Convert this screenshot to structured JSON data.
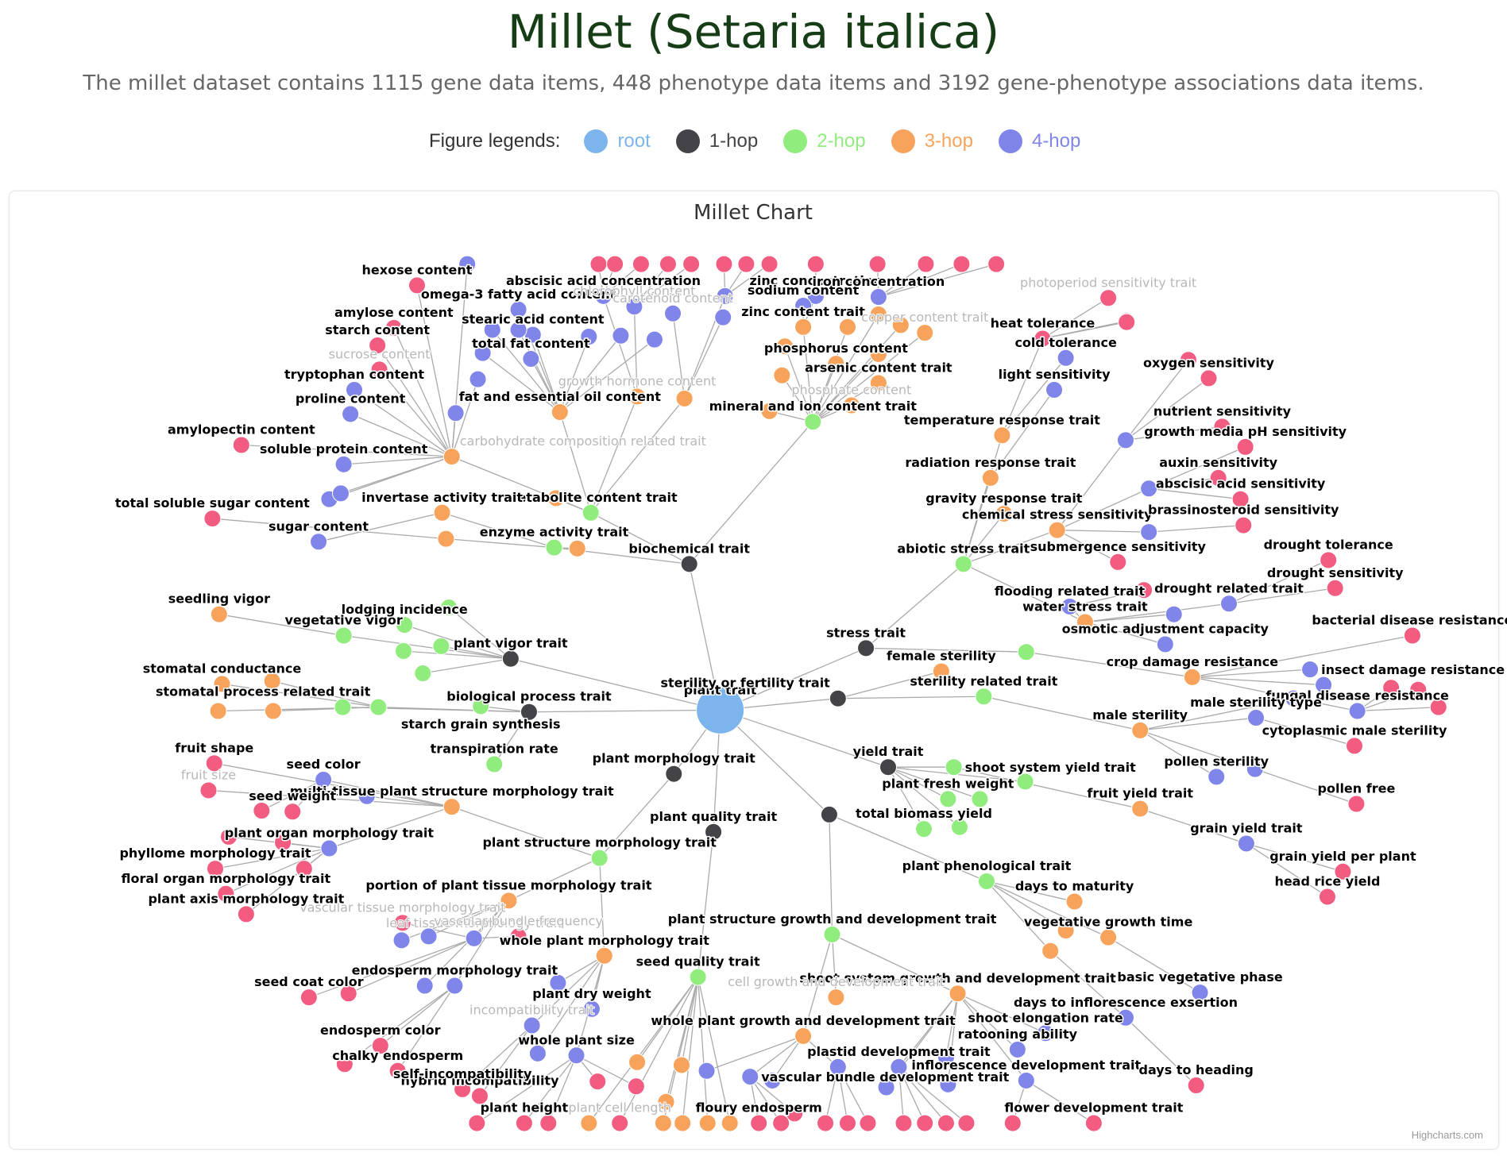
{
  "header": {
    "title": "Millet (Setaria italica)",
    "subtitle": "The millet dataset contains 1115 gene data items, 448 phenotype data items and 3192 gene-phenotype associations data items."
  },
  "legend": {
    "caption": "Figure legends:",
    "items": [
      {
        "label": "root",
        "color": "#7cb5ec",
        "text_color": "#7cb5ec"
      },
      {
        "label": "1-hop",
        "color": "#434348",
        "text_color": "#434348"
      },
      {
        "label": "2-hop",
        "color": "#90ed7d",
        "text_color": "#90ed7d"
      },
      {
        "label": "3-hop",
        "color": "#f7a35c",
        "text_color": "#f7a35c"
      },
      {
        "label": "4-hop",
        "color": "#8085e9",
        "text_color": "#8085e9"
      }
    ],
    "leaf_color": "#f15c80"
  },
  "chart": {
    "title": "Millet Chart",
    "credits": "Highcharts.com"
  },
  "chart_data": {
    "type": "network-graph",
    "root": "plant trait",
    "labeled_nodes": [
      {
        "label": "plant trait",
        "level": 0
      },
      {
        "label": "biochemical trait",
        "level": 1
      },
      {
        "label": "stress trait",
        "level": 1
      },
      {
        "label": "sterility or fertility trait",
        "level": 1
      },
      {
        "label": "yield trait",
        "level": 1
      },
      {
        "label": "plant quality trait",
        "level": 1
      },
      {
        "label": "plant morphology trait",
        "level": 1
      },
      {
        "label": "biological process trait",
        "level": 1
      },
      {
        "label": "plant vigor trait",
        "level": 1
      },
      {
        "label": "mineral and ion content trait",
        "level": 2
      },
      {
        "label": "metabolite content trait",
        "level": 2
      },
      {
        "label": "enzyme activity trait",
        "level": 2
      },
      {
        "label": "abiotic stress trait",
        "level": 2
      },
      {
        "label": "sterility related trait",
        "level": 2
      },
      {
        "label": "shoot system yield trait",
        "level": 2
      },
      {
        "label": "plant fresh weight",
        "level": 2
      },
      {
        "label": "total biomass yield",
        "level": 2
      },
      {
        "label": "plant phenological trait",
        "level": 2
      },
      {
        "label": "plant structure growth and development trait",
        "level": 2
      },
      {
        "label": "plant structure morphology trait",
        "level": 2
      },
      {
        "label": "seed quality trait",
        "level": 2
      },
      {
        "label": "starch grain synthesis",
        "level": 2
      },
      {
        "label": "transpiration rate",
        "level": 2
      },
      {
        "label": "stomatal process related trait",
        "level": 2
      },
      {
        "label": "vegetative vigor",
        "level": 2
      },
      {
        "label": "lodging incidence",
        "level": 2
      },
      {
        "label": "female sterility",
        "level": 3
      },
      {
        "label": "male sterility",
        "level": 3
      },
      {
        "label": "crop damage resistance",
        "level": 3
      },
      {
        "label": "fruit yield trait",
        "level": 3
      },
      {
        "label": "days to maturity",
        "level": 3
      },
      {
        "label": "vegetative growth time",
        "level": 3
      },
      {
        "label": "shoot system growth and development trait",
        "level": 3
      },
      {
        "label": "whole plant growth and development trait",
        "level": 3
      },
      {
        "label": "cell growth and development trait",
        "level": 3
      },
      {
        "label": "whole plant morphology trait",
        "level": 3
      },
      {
        "label": "portion of plant tissue morphology trait",
        "level": 3
      },
      {
        "label": "multi-tissue plant structure morphology trait",
        "level": 3
      },
      {
        "label": "invertase activity trait",
        "level": 3
      },
      {
        "label": "carbohydrate composition related trait",
        "level": 3
      },
      {
        "label": "fat and essential oil content",
        "level": 3
      },
      {
        "label": "growth hormone content",
        "level": 3
      },
      {
        "label": "phosphate content",
        "level": 3
      },
      {
        "label": "arsenic content trait",
        "level": 3
      },
      {
        "label": "phosphorus content",
        "level": 3
      },
      {
        "label": "zinc content trait",
        "level": 3
      },
      {
        "label": "copper content trait",
        "level": 3
      },
      {
        "label": "temperature response trait",
        "level": 3
      },
      {
        "label": "radiation response trait",
        "level": 3
      },
      {
        "label": "gravity response trait",
        "level": 3
      },
      {
        "label": "chemical stress sensitivity",
        "level": 3
      },
      {
        "label": "water stress trait",
        "level": 3
      },
      {
        "label": "seedling vigor",
        "level": 3
      },
      {
        "label": "stomatal conductance",
        "level": 3
      },
      {
        "label": "fungal disease resistance",
        "level": 4
      },
      {
        "label": "insect damage resistance",
        "level": 4
      },
      {
        "label": "male sterility type",
        "level": 4
      },
      {
        "label": "pollen sterility",
        "level": 4
      },
      {
        "label": "grain yield trait",
        "level": 4
      },
      {
        "label": "basic vegetative phase",
        "level": 4
      },
      {
        "label": "days to inflorescence exsertion",
        "level": 4
      },
      {
        "label": "shoot elongation rate",
        "level": 4
      },
      {
        "label": "ratooning ability",
        "level": 4
      },
      {
        "label": "inflorescence development trait",
        "level": 4
      },
      {
        "label": "vascular bundle development trait",
        "level": 4
      },
      {
        "label": "plastid development trait",
        "level": 4
      },
      {
        "label": "whole plant size",
        "level": 4
      },
      {
        "label": "plant dry weight",
        "level": 4
      },
      {
        "label": "incompatibility trait",
        "level": 4
      },
      {
        "label": "endosperm morphology trait",
        "level": 4
      },
      {
        "label": "leaf tissue morphology trait",
        "level": 4
      },
      {
        "label": "plant organ morphology trait",
        "level": 4
      },
      {
        "label": "seed color",
        "level": 4
      },
      {
        "label": "sugar content",
        "level": 4
      },
      {
        "label": "soluble protein content",
        "level": 4
      },
      {
        "label": "proline content",
        "level": 4
      },
      {
        "label": "tryptophan content",
        "level": 4
      },
      {
        "label": "total fat content",
        "level": 4
      },
      {
        "label": "stearic acid content",
        "level": 4
      },
      {
        "label": "omega-3 fatty acid content",
        "level": 4
      },
      {
        "label": "abscisic acid concentration",
        "level": 4
      },
      {
        "label": "chlorophyll content",
        "level": 4
      },
      {
        "label": "carotenoid content",
        "level": 4
      },
      {
        "label": "zinc concentration",
        "level": 4
      },
      {
        "label": "sodium content",
        "level": 4
      },
      {
        "label": "iron concentration",
        "level": 4
      },
      {
        "label": "heat tolerance",
        "level": 4
      },
      {
        "label": "cold tolerance",
        "level": 4
      },
      {
        "label": "light sensitivity",
        "level": 4
      },
      {
        "label": "osmotic adjustment capacity",
        "level": 4
      },
      {
        "label": "drought related trait",
        "level": 4
      },
      {
        "label": "flooding related trait",
        "level": 4
      },
      {
        "label": "amylopectin content",
        "level": 5
      },
      {
        "label": "total soluble sugar content",
        "level": 5
      },
      {
        "label": "starch content",
        "level": 5
      },
      {
        "label": "amylose content",
        "level": 5
      },
      {
        "label": "hexose content",
        "level": 5
      },
      {
        "label": "sucrose content",
        "level": 5
      },
      {
        "label": "photoperiod sensitivity trait",
        "level": 5
      },
      {
        "label": "oxygen sensitivity",
        "level": 5
      },
      {
        "label": "nutrient sensitivity",
        "level": 5
      },
      {
        "label": "growth media pH sensitivity",
        "level": 5
      },
      {
        "label": "auxin sensitivity",
        "level": 5
      },
      {
        "label": "abscisic acid sensitivity",
        "level": 5
      },
      {
        "label": "brassinosteroid sensitivity",
        "level": 5
      },
      {
        "label": "submergence sensitivity",
        "level": 5
      },
      {
        "label": "drought tolerance",
        "level": 5
      },
      {
        "label": "drought sensitivity",
        "level": 5
      },
      {
        "label": "bacterial disease resistance",
        "level": 5
      },
      {
        "label": "cytoplasmic male sterility",
        "level": 5
      },
      {
        "label": "pollen free",
        "level": 5
      },
      {
        "label": "grain yield per plant",
        "level": 5
      },
      {
        "label": "head rice yield",
        "level": 5
      },
      {
        "label": "days to heading",
        "level": 5
      },
      {
        "label": "flower development trait",
        "level": 5
      },
      {
        "label": "floury endosperm",
        "level": 5
      },
      {
        "label": "plant cell length",
        "level": 5
      },
      {
        "label": "plant height",
        "level": 5
      },
      {
        "label": "hybrid incompatibility",
        "level": 5
      },
      {
        "label": "self-incompatibility",
        "level": 5
      },
      {
        "label": "chalky endosperm",
        "level": 5
      },
      {
        "label": "endosperm color",
        "level": 5
      },
      {
        "label": "seed coat color",
        "level": 5
      },
      {
        "label": "vascular tissue morphology trait",
        "level": 5
      },
      {
        "label": "vascular bundle frequency",
        "level": 5
      },
      {
        "label": "plant axis morphology trait",
        "level": 5
      },
      {
        "label": "floral organ morphology trait",
        "level": 5
      },
      {
        "label": "phyllome morphology trait",
        "level": 5
      },
      {
        "label": "seed weight",
        "level": 5
      },
      {
        "label": "fruit size",
        "level": 5
      },
      {
        "label": "fruit shape",
        "level": 5
      }
    ]
  }
}
